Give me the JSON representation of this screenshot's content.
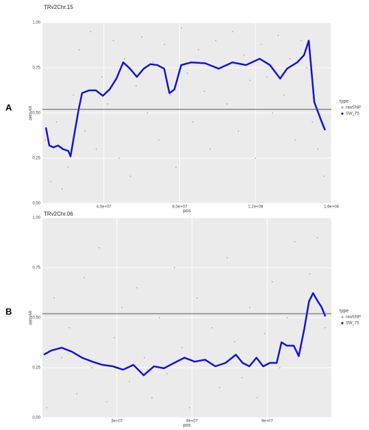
{
  "chart_data": [
    {
      "type": "scatter-line",
      "panel_label": "A",
      "title": "TRv2Chr.15",
      "x_label": "pos",
      "y_label": "deltaAR",
      "xlim": [
        7600000,
        160000000
      ],
      "ylim": [
        0,
        1
      ],
      "xticks": [
        {
          "value": 40000000,
          "label": "4.0e+07"
        },
        {
          "value": 80000000,
          "label": "8.0e+07"
        },
        {
          "value": 120000000,
          "label": "1.2e+08"
        },
        {
          "value": 160000000,
          "label": "1.6e+08"
        }
      ],
      "yticks": [
        {
          "value": 0,
          "label": "0.00"
        },
        {
          "value": 0.25,
          "label": "0.25"
        },
        {
          "value": 0.5,
          "label": "0.50"
        },
        {
          "value": 0.75,
          "label": "0.75"
        },
        {
          "value": 1,
          "label": "1.00"
        }
      ],
      "hline": 0.52,
      "grid": true,
      "legend_title": "type",
      "series": [
        {
          "name": "rawSNP",
          "color": "#a8a8a8",
          "x": [
            9000000,
            12000000,
            15000000,
            18000000,
            21000000,
            24000000,
            27000000,
            30000000,
            33000000,
            36000000,
            39000000,
            42000000,
            45000000,
            48000000,
            51000000,
            54000000,
            57000000,
            60000000,
            63000000,
            66000000,
            69000000,
            72000000,
            75000000,
            78000000,
            81000000,
            84000000,
            87000000,
            90000000,
            93000000,
            96000000,
            99000000,
            102000000,
            105000000,
            108000000,
            111000000,
            114000000,
            117000000,
            120000000,
            123000000,
            126000000,
            129000000,
            132000000,
            135000000,
            138000000,
            141000000,
            144000000,
            147000000,
            150000000,
            153000000,
            156000000
          ],
          "values": [
            0.35,
            0.12,
            0.45,
            0.08,
            0.2,
            0.6,
            0.85,
            0.4,
            0.95,
            0.3,
            0.7,
            0.55,
            0.9,
            0.25,
            0.8,
            0.15,
            0.65,
            0.92,
            0.5,
            0.78,
            0.35,
            0.88,
            0.6,
            0.2,
            0.97,
            0.72,
            0.45,
            0.85,
            0.62,
            0.3,
            0.9,
            0.75,
            0.55,
            0.95,
            0.4,
            0.82,
            0.68,
            0.25,
            0.88,
            0.7,
            0.5,
            0.93,
            0.6,
            0.8,
            0.35,
            0.9,
            0.75,
            0.45,
            0.3,
            0.15
          ]
        },
        {
          "name": "SW_75",
          "color": "#1010e0",
          "x": [
            9400000,
            11200000,
            13400000,
            15900000,
            18400000,
            21300000,
            22400000,
            24200000,
            26700000,
            28500000,
            32100000,
            35800000,
            39400000,
            43000000,
            46600000,
            50200000,
            53800000,
            57400000,
            61000000,
            64600000,
            68200000,
            71800000,
            74600000,
            77200000,
            80800000,
            86200000,
            93400000,
            100600000,
            107800000,
            115000000,
            122200000,
            127600000,
            133000000,
            136600000,
            142000000,
            145600000,
            148100000,
            151000000,
            154600000,
            156700000
          ],
          "values": [
            0.42,
            0.32,
            0.31,
            0.32,
            0.3,
            0.29,
            0.26,
            0.37,
            0.52,
            0.61,
            0.625,
            0.625,
            0.595,
            0.63,
            0.69,
            0.78,
            0.745,
            0.7,
            0.745,
            0.77,
            0.765,
            0.745,
            0.61,
            0.63,
            0.765,
            0.78,
            0.775,
            0.745,
            0.78,
            0.765,
            0.8,
            0.765,
            0.69,
            0.745,
            0.78,
            0.82,
            0.9,
            0.56,
            0.46,
            0.405
          ]
        }
      ]
    },
    {
      "type": "scatter-line",
      "panel_label": "B",
      "title": "TRv2Chr.06",
      "x_label": "pos",
      "y_label": "deltaAR",
      "xlim": [
        300000,
        115600000
      ],
      "ylim": [
        0,
        1
      ],
      "xticks": [
        {
          "value": 30000000,
          "label": "3e+07"
        },
        {
          "value": 60000000,
          "label": "6e+07"
        },
        {
          "value": 90000000,
          "label": "9e+07"
        }
      ],
      "yticks": [
        {
          "value": 0,
          "label": "0.00"
        },
        {
          "value": 0.25,
          "label": "0.25"
        },
        {
          "value": 0.5,
          "label": "0.50"
        },
        {
          "value": 0.75,
          "label": "0.75"
        },
        {
          "value": 1,
          "label": "1.00"
        }
      ],
      "hline": 0.52,
      "grid": true,
      "legend_title": "type",
      "series": [
        {
          "name": "rawSNP",
          "color": "#a8a8a8",
          "x": [
            2000000,
            5000000,
            8000000,
            11000000,
            14000000,
            17000000,
            20000000,
            23000000,
            26000000,
            29000000,
            32000000,
            35000000,
            38000000,
            41000000,
            44000000,
            47000000,
            50000000,
            53000000,
            56000000,
            59000000,
            62000000,
            65000000,
            68000000,
            71000000,
            74000000,
            77000000,
            80000000,
            83000000,
            86000000,
            89000000,
            92000000,
            95000000,
            98000000,
            101000000,
            104000000,
            107000000,
            110000000,
            113000000
          ],
          "values": [
            0.05,
            0.6,
            0.3,
            0.45,
            0.12,
            0.7,
            0.25,
            0.85,
            0.08,
            0.4,
            0.55,
            0.18,
            0.65,
            0.3,
            0.1,
            0.5,
            0.22,
            0.75,
            0.35,
            0.05,
            0.6,
            0.28,
            0.45,
            0.15,
            0.8,
            0.38,
            0.2,
            0.55,
            0.1,
            0.42,
            0.68,
            0.25,
            0.5,
            0.88,
            0.35,
            0.72,
            0.9,
            0.45
          ]
        },
        {
          "name": "SW_75",
          "color": "#1010e0",
          "x": [
            850000,
            3850000,
            7940000,
            12030000,
            16120000,
            20210000,
            24300000,
            28400000,
            32500000,
            36600000,
            40700000,
            44800000,
            48800000,
            52900000,
            57000000,
            61100000,
            65200000,
            69300000,
            73400000,
            77500000,
            80200000,
            82900000,
            85700000,
            88400000,
            91100000,
            93800000,
            95700000,
            97900000,
            100600000,
            102600000,
            104800000,
            106700000,
            108300000,
            110200000,
            111600000,
            113200000
          ],
          "values": [
            0.315,
            0.336,
            0.35,
            0.33,
            0.3,
            0.28,
            0.264,
            0.257,
            0.24,
            0.264,
            0.212,
            0.257,
            0.247,
            0.274,
            0.3,
            0.28,
            0.29,
            0.257,
            0.274,
            0.315,
            0.274,
            0.257,
            0.3,
            0.257,
            0.274,
            0.274,
            0.377,
            0.36,
            0.36,
            0.308,
            0.445,
            0.582,
            0.623,
            0.582,
            0.555,
            0.507
          ]
        }
      ]
    }
  ]
}
